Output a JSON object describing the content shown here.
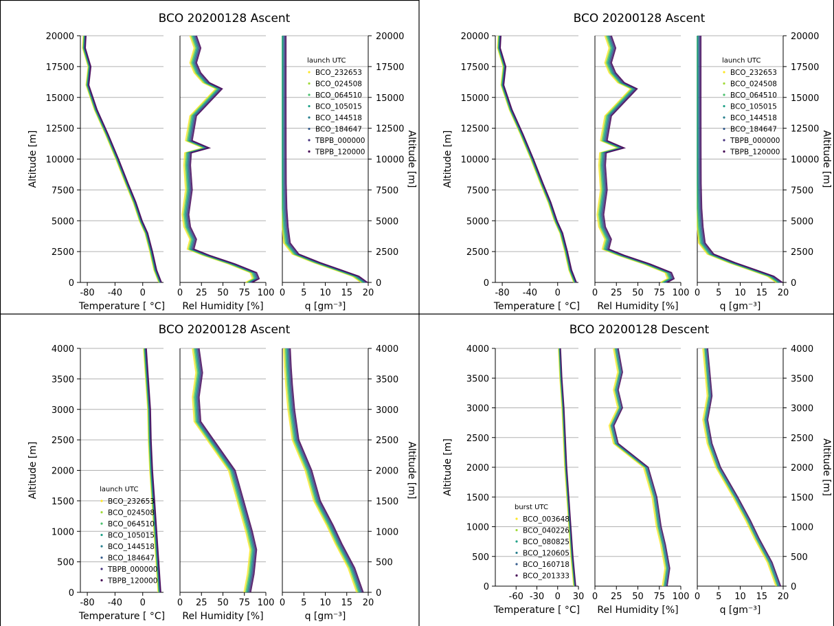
{
  "colors": {
    "yellow": "#fde725",
    "lightgreen": "#a0da39",
    "green": "#4ac16d",
    "teal": "#1fa187",
    "bluegreen": "#277f8e",
    "blue": "#365c8d",
    "indigo": "#46327e",
    "purple": "#440154",
    "grid": "#b0b0b0"
  },
  "chart_data": [
    {
      "type": "line",
      "title": "BCO 20200128 Ascent",
      "ylabel": "Altitude [m]",
      "ylim": [
        0,
        20000
      ],
      "yticks": [
        "0",
        "2500",
        "5000",
        "7500",
        "10000",
        "12500",
        "15000",
        "17500",
        "20000"
      ],
      "legend_title": "launch UTC",
      "legend_position": "top-right",
      "series": [
        {
          "name": "BCO_232653"
        },
        {
          "name": "BCO_024508"
        },
        {
          "name": "BCO_064510"
        },
        {
          "name": "BCO_105015"
        },
        {
          "name": "BCO_144518"
        },
        {
          "name": "BCO_184647"
        },
        {
          "name": "TBPB_000000"
        },
        {
          "name": "TBPB_120000"
        }
      ],
      "panels": [
        {
          "xlabel": "Temperature [ °C]",
          "xlim": [
            -90,
            30
          ],
          "xticks": [
            "-80",
            "-40",
            "0"
          ],
          "x": [
            25,
            18,
            12,
            5,
            -3,
            -12,
            -23,
            -37,
            -52,
            -68,
            -80,
            -77,
            -85,
            -84
          ],
          "y": [
            0,
            1000,
            2500,
            4000,
            5000,
            6500,
            8000,
            10000,
            12000,
            14000,
            16000,
            17500,
            19000,
            20000
          ]
        },
        {
          "xlabel": "Rel Humidity [%]",
          "xlim": [
            0,
            100
          ],
          "xticks": [
            "0",
            "25",
            "50",
            "75",
            "100"
          ],
          "x": [
            80,
            88,
            85,
            60,
            30,
            12,
            15,
            8,
            6,
            10,
            8,
            9,
            30,
            10,
            15,
            45,
            30,
            20,
            15,
            20,
            15
          ],
          "y": [
            0,
            300,
            800,
            1500,
            2200,
            2700,
            3500,
            4500,
            5500,
            7500,
            9500,
            10500,
            10900,
            11500,
            13500,
            15700,
            16200,
            17000,
            17800,
            19000,
            20000
          ]
        },
        {
          "xlabel": "q [gm⁻³]",
          "xlim": [
            0,
            20
          ],
          "xticks": [
            "0",
            "5",
            "10",
            "15",
            "20"
          ],
          "x": [
            19,
            17,
            13,
            8,
            3,
            1,
            0.5,
            0.2,
            0.05,
            0.02,
            0.01,
            0.01
          ],
          "y": [
            0,
            500,
            1000,
            1600,
            2300,
            3200,
            4500,
            6000,
            8000,
            11000,
            15000,
            20000
          ]
        }
      ]
    },
    {
      "type": "line",
      "title": "BCO 20200128 Ascent",
      "ylabel": "Altitude [m]",
      "ylim": [
        0,
        20000
      ],
      "yticks": [
        "0",
        "2500",
        "5000",
        "7500",
        "10000",
        "12500",
        "15000",
        "17500",
        "20000"
      ],
      "legend_title": "launch UTC",
      "legend_position": "top-right",
      "series": [
        {
          "name": "BCO_232653"
        },
        {
          "name": "BCO_024508"
        },
        {
          "name": "BCO_064510"
        },
        {
          "name": "BCO_105015"
        },
        {
          "name": "BCO_144518"
        },
        {
          "name": "BCO_184647"
        },
        {
          "name": "TBPB_000000"
        },
        {
          "name": "TBPB_120000"
        }
      ],
      "panels": [
        {
          "xlabel": "Temperature [ °C]",
          "xlim": [
            -90,
            30
          ],
          "xticks": [
            "-80",
            "-40",
            "0"
          ],
          "x": [
            25,
            18,
            12,
            5,
            -3,
            -12,
            -23,
            -37,
            -52,
            -68,
            -80,
            -77,
            -85,
            -84
          ],
          "y": [
            0,
            1000,
            2500,
            4000,
            5000,
            6500,
            8000,
            10000,
            12000,
            14000,
            16000,
            17500,
            19000,
            20000
          ]
        },
        {
          "xlabel": "Rel Humidity [%]",
          "xlim": [
            0,
            100
          ],
          "xticks": [
            "0",
            "25",
            "50",
            "75",
            "100"
          ],
          "x": [
            80,
            88,
            85,
            60,
            30,
            12,
            15,
            8,
            6,
            10,
            8,
            9,
            30,
            10,
            15,
            45,
            30,
            20,
            15,
            20,
            15
          ],
          "y": [
            0,
            300,
            800,
            1500,
            2200,
            2700,
            3500,
            4500,
            5500,
            7500,
            9500,
            10500,
            10900,
            11500,
            13500,
            15700,
            16200,
            17000,
            17800,
            19000,
            20000
          ]
        },
        {
          "xlabel": "q [gm⁻³]",
          "xlim": [
            0,
            20
          ],
          "xticks": [
            "0",
            "5",
            "10",
            "15",
            "20"
          ],
          "x": [
            19,
            17,
            13,
            8,
            3,
            1,
            0.5,
            0.2,
            0.05,
            0.02,
            0.01,
            0.01
          ],
          "y": [
            0,
            500,
            1000,
            1600,
            2300,
            3200,
            4500,
            6000,
            8000,
            11000,
            15000,
            20000
          ]
        }
      ]
    },
    {
      "type": "line",
      "title": "BCO 20200128 Ascent",
      "ylabel": "Altitude [m]",
      "ylim": [
        0,
        4000
      ],
      "yticks": [
        "0",
        "500",
        "1000",
        "1500",
        "2000",
        "2500",
        "3000",
        "3500",
        "4000"
      ],
      "legend_title": "launch UTC",
      "legend_position": "lower-left",
      "series": [
        {
          "name": "BCO_232653"
        },
        {
          "name": "BCO_024508"
        },
        {
          "name": "BCO_064510"
        },
        {
          "name": "BCO_105015"
        },
        {
          "name": "BCO_144518"
        },
        {
          "name": "BCO_184647"
        },
        {
          "name": "TBPB_000000"
        },
        {
          "name": "TBPB_120000"
        }
      ],
      "panels": [
        {
          "xlabel": "Temperature [ °C]",
          "xlim": [
            -90,
            30
          ],
          "xticks": [
            "-80",
            "-40",
            "0"
          ],
          "x": [
            24,
            21,
            18,
            15,
            12,
            10,
            9,
            6,
            3
          ],
          "y": [
            0,
            500,
            1000,
            1500,
            2000,
            2500,
            3000,
            3500,
            4000
          ]
        },
        {
          "xlabel": "Rel Humidity [%]",
          "xlim": [
            0,
            100
          ],
          "xticks": [
            "0",
            "25",
            "50",
            "75",
            "100"
          ],
          "x": [
            78,
            82,
            85,
            80,
            70,
            60,
            40,
            20,
            18,
            22,
            18
          ],
          "y": [
            0,
            300,
            700,
            1000,
            1500,
            2000,
            2400,
            2800,
            3200,
            3600,
            4000
          ]
        },
        {
          "xlabel": "q [gm⁻³]",
          "xlim": [
            0,
            20
          ],
          "xticks": [
            "0",
            "5",
            "10",
            "15",
            "20"
          ],
          "x": [
            18,
            16,
            13,
            11,
            8,
            6,
            3,
            2,
            1.5,
            1.2,
            1
          ],
          "y": [
            0,
            400,
            800,
            1100,
            1500,
            2000,
            2500,
            3000,
            3400,
            3700,
            4000
          ]
        }
      ]
    },
    {
      "type": "line",
      "title": "BCO 20200128 Descent",
      "ylabel": "Altitude [m]",
      "ylim": [
        0,
        4000
      ],
      "yticks": [
        "0",
        "500",
        "1000",
        "1500",
        "2000",
        "2500",
        "3000",
        "3500",
        "4000"
      ],
      "legend_title": "burst UTC",
      "legend_position": "lower-left",
      "series": [
        {
          "name": "BCO_003648"
        },
        {
          "name": "BCO_040226"
        },
        {
          "name": "BCO_080825"
        },
        {
          "name": "BCO_120605"
        },
        {
          "name": "BCO_160718"
        },
        {
          "name": "BCO_201333"
        }
      ],
      "panels": [
        {
          "xlabel": "Temperature [ °C]",
          "xlim": [
            -90,
            30
          ],
          "xticks": [
            "-60",
            "-30",
            "0",
            "30"
          ],
          "x": [
            25,
            21,
            18,
            15,
            12,
            10,
            8,
            5,
            3
          ],
          "y": [
            0,
            500,
            1000,
            1500,
            2000,
            2500,
            3000,
            3500,
            4000
          ]
        },
        {
          "xlabel": "Rel Humidity [%]",
          "xlim": [
            0,
            100
          ],
          "xticks": [
            "0",
            "25",
            "50",
            "75",
            "100"
          ],
          "x": [
            82,
            85,
            80,
            75,
            70,
            60,
            25,
            20,
            30,
            25,
            30,
            25
          ],
          "y": [
            0,
            300,
            700,
            1000,
            1500,
            2000,
            2400,
            2700,
            3000,
            3300,
            3600,
            4000
          ]
        },
        {
          "xlabel": "q [gm⁻³]",
          "xlim": [
            0,
            20
          ],
          "xticks": [
            "0",
            "5",
            "10",
            "15",
            "20"
          ],
          "x": [
            19,
            17,
            14,
            12,
            9,
            5,
            3,
            2,
            3,
            2.5,
            2
          ],
          "y": [
            0,
            400,
            800,
            1100,
            1500,
            2000,
            2400,
            2800,
            3200,
            3600,
            4000
          ]
        }
      ]
    }
  ]
}
